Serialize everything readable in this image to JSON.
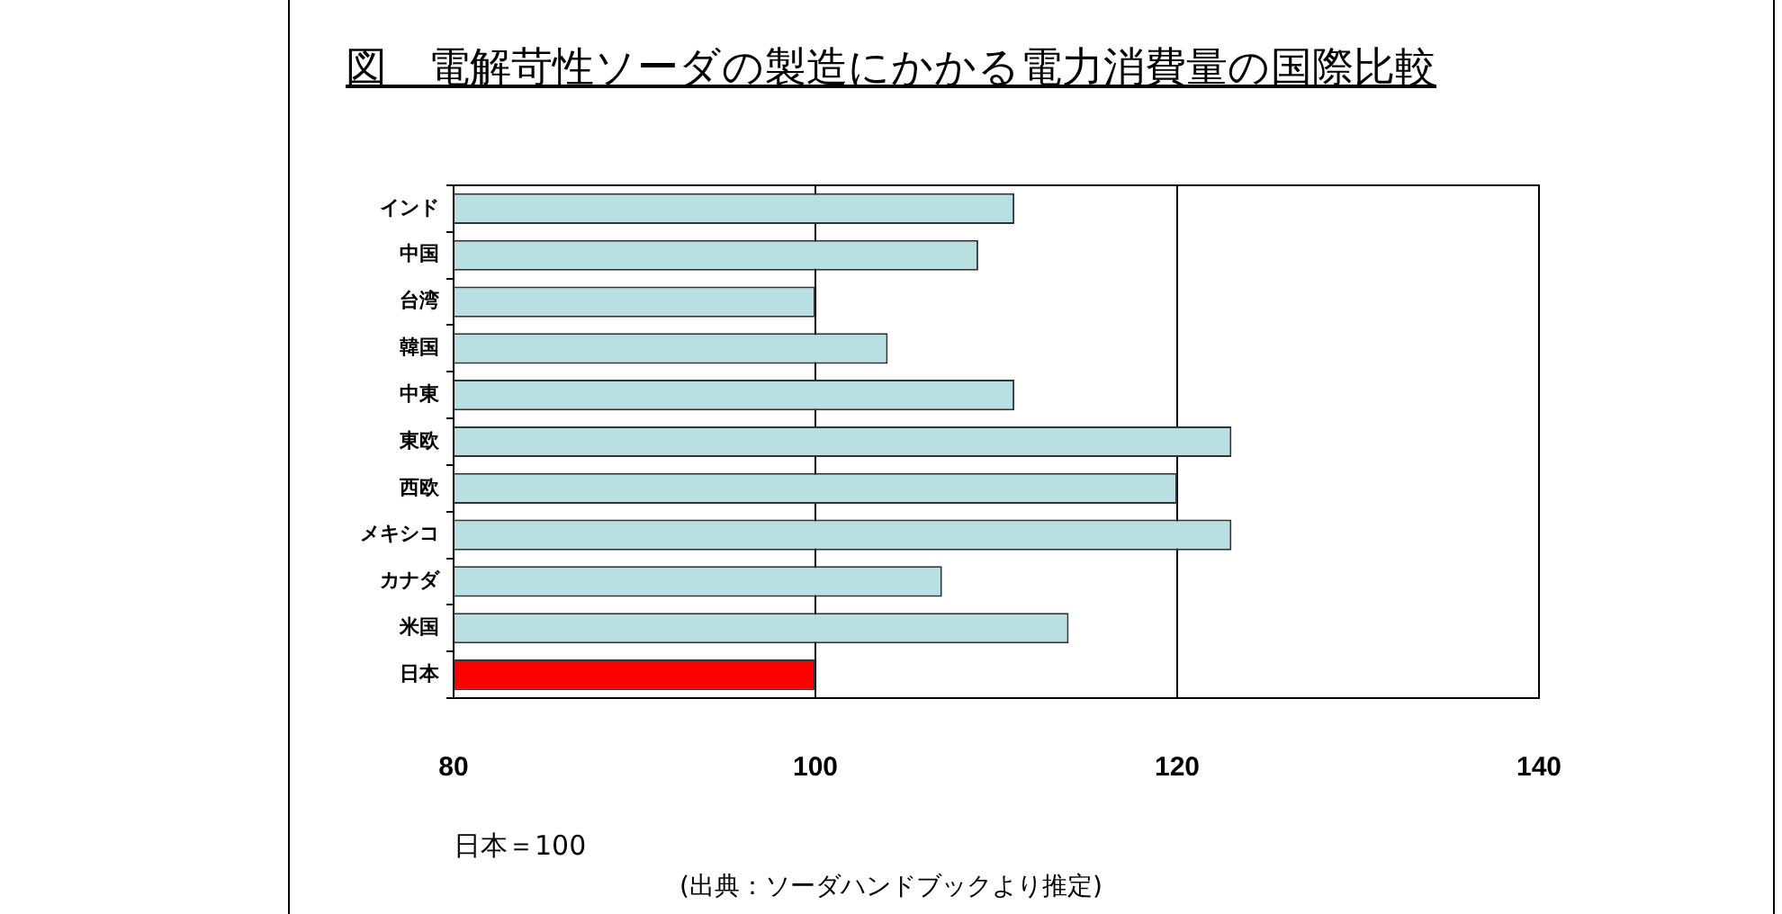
{
  "chart_data": {
    "type": "bar",
    "orientation": "horizontal",
    "title": "図　電解苛性ソーダの製造にかかる電力消費量の国際比較",
    "categories": [
      "インド",
      "中国",
      "台湾",
      "韓国",
      "中東",
      "東欧",
      "西欧",
      "メキシコ",
      "カナダ",
      "米国",
      "日本"
    ],
    "values": [
      111,
      109,
      100,
      104,
      111,
      123,
      120,
      123,
      107,
      114,
      100
    ],
    "colors": [
      "#b8e0e2",
      "#b8e0e2",
      "#b8e0e2",
      "#b8e0e2",
      "#b8e0e2",
      "#b8e0e2",
      "#b8e0e2",
      "#b8e0e2",
      "#b8e0e2",
      "#b8e0e2",
      "#ff0000"
    ],
    "xlim": [
      80,
      140
    ],
    "xticks": [
      80,
      100,
      120,
      140
    ],
    "xlabel": "日本＝100",
    "grid": "x",
    "legend": false,
    "annotations": [
      "(出典：ソーダハンドブックより推定)"
    ]
  }
}
